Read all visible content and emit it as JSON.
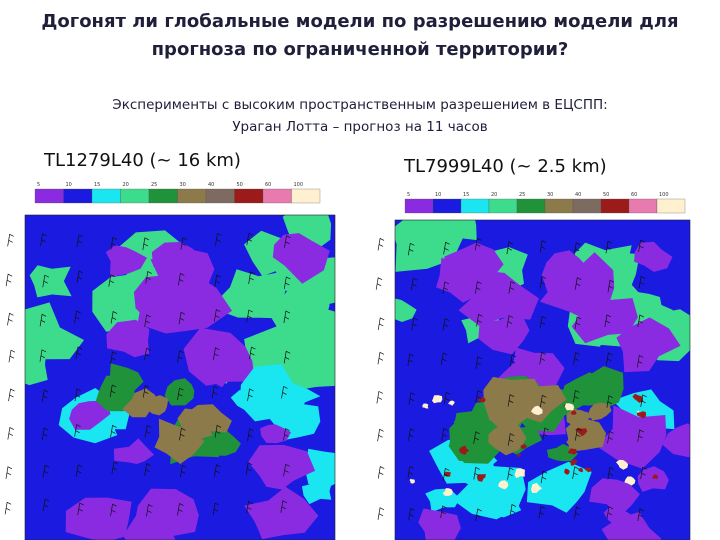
{
  "title_lines": [
    "Догонят ли глобальные модели по разрешению модели для",
    "прогноза по ограниченной территории?"
  ],
  "subtitle_lines": [
    "Эксперименты с высоким пространственным разрешением в ЕЦСПП:",
    "Ураган Лотта – прогноз на 11 часов"
  ],
  "panels": [
    {
      "label": "TL1279L40 (~ 16 km)",
      "colorbar_labels": [
        "5",
        "10",
        "15",
        "20",
        "25",
        "30",
        "40",
        "50",
        "60",
        "100"
      ]
    },
    {
      "label": "TL7999L40 (~ 2.5 km)",
      "colorbar_labels": [
        "5",
        "10",
        "15",
        "20",
        "25",
        "30",
        "40",
        "50",
        "60",
        "100"
      ]
    }
  ]
}
